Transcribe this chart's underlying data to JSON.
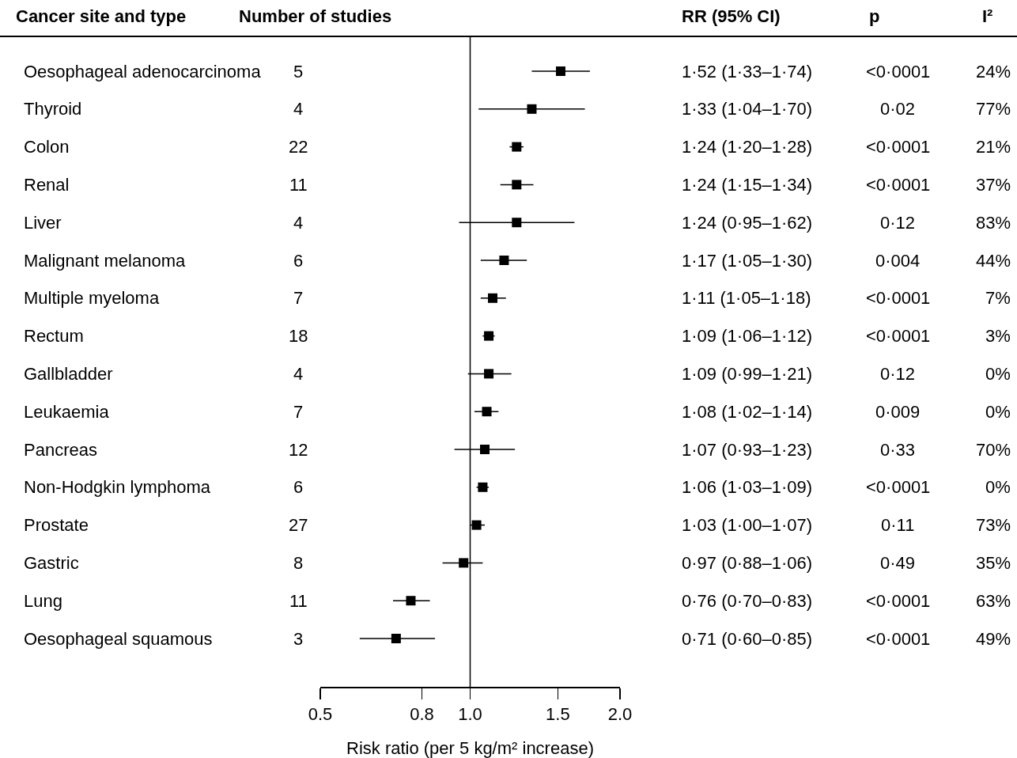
{
  "chart_data": {
    "type": "scatter",
    "orientation": "horizontal",
    "marker": "square",
    "color": "#000000",
    "log": "x",
    "ylabel": "Cancer site and type",
    "xlabel": "Risk ratio (per 5 kg/m² increase)",
    "categories": [
      "Oesophageal adenocarcinoma",
      "Thyroid",
      "Colon",
      "Renal",
      "Liver",
      "Malignant melanoma",
      "Multiple myeloma",
      "Rectum",
      "Gallbladder",
      "Leukaemia",
      "Pancreas",
      "Non-Hodgkin lymphoma",
      "Prostate",
      "Gastric",
      "Lung",
      "Oesophageal squamous"
    ],
    "values": [
      1.52,
      1.33,
      1.24,
      1.24,
      1.24,
      1.17,
      1.11,
      1.09,
      1.09,
      1.08,
      1.07,
      1.06,
      1.03,
      0.97,
      0.76,
      0.71
    ],
    "errors": [
      [
        1.33,
        1.74
      ],
      [
        1.04,
        1.7
      ],
      [
        1.2,
        1.28
      ],
      [
        1.15,
        1.34
      ],
      [
        0.95,
        1.62
      ],
      [
        1.05,
        1.3
      ],
      [
        1.05,
        1.18
      ],
      [
        1.06,
        1.12
      ],
      [
        0.99,
        1.21
      ],
      [
        1.02,
        1.14
      ],
      [
        0.93,
        1.23
      ],
      [
        1.03,
        1.09
      ],
      [
        1.0,
        1.07
      ],
      [
        0.88,
        1.06
      ],
      [
        0.7,
        0.83
      ],
      [
        0.6,
        0.85
      ]
    ],
    "value_labels": [
      "1·52 (1·33–1·74)",
      "1·33 (1·04–1·70)",
      "1·24 (1·20–1·28)",
      "1·24 (1·15–1·34)",
      "1·24 (0·95–1·62)",
      "1·17 (1·05–1·30)",
      "1·11 (1·05–1·18)",
      "1·09 (1·06–1·12)",
      "1·09 (0·99–1·21)",
      "1·08 (1·02–1·14)",
      "1·07 (0·93–1·23)",
      "1·06 (1·03–1·09)",
      "1·03 (1·00–1·07)",
      "0·97 (0·88–1·06)",
      "0·76 (0·70–0·83)",
      "0·71 (0·60–0·85)"
    ],
    "xlim": [
      0.5,
      2.0
    ],
    "xticks": [
      0.5,
      0.8,
      {
        "value": 1.0,
        "label": "1.0"
      },
      1.5,
      {
        "value": 2.0,
        "label": "2.0"
      }
    ],
    "ref_lines": [
      {
        "axis": "x",
        "value": 1.0,
        "color": "#000000"
      }
    ],
    "annotations": [
      "Number of studies",
      "RR (95% CI)",
      "p",
      "I²",
      "5",
      "4",
      "22",
      "11",
      "4",
      "6",
      "7",
      "18",
      "4",
      "7",
      "12",
      "6",
      "27",
      "8",
      "11",
      "3",
      "<0·0001",
      "0·02",
      "<0·0001",
      "<0·0001",
      "0·12",
      "0·004",
      "<0·0001",
      "<0·0001",
      "0·12",
      "0·009",
      "0·33",
      "<0·0001",
      "0·11",
      "0·49",
      "<0·0001",
      "<0·0001",
      "24%",
      "77%",
      "21%",
      "37%",
      "83%",
      "44%",
      "7%",
      "3%",
      "0%",
      "0%",
      "70%",
      "0%",
      "73%",
      "35%",
      "63%",
      "49%"
    ]
  }
}
